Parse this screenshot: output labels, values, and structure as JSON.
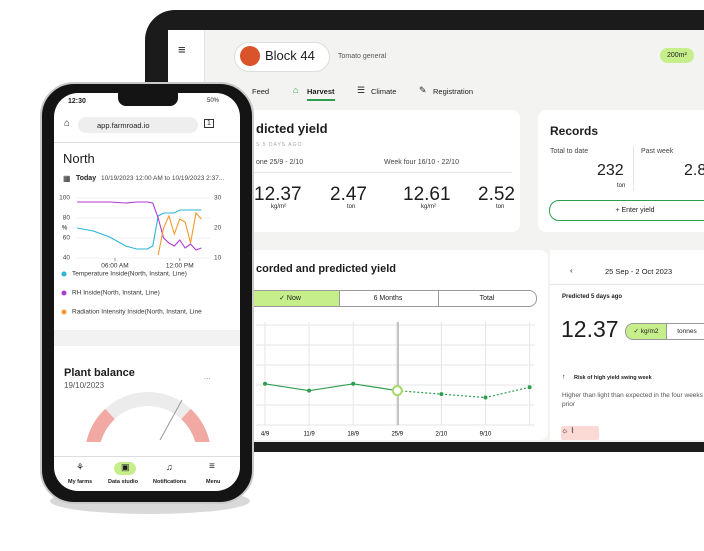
{
  "tablet": {
    "block": "Block 44",
    "crop": "Tomato general",
    "area": "200m²",
    "tabs": [
      "Feed",
      "Harvest",
      "Climate",
      "Registration"
    ],
    "yield_card": {
      "title": "dicted yield",
      "subtitle": "S 5 DAYS AGO",
      "week_one": "one 25/9 - 2/10",
      "week_four": "Week four 16/10 - 22/10",
      "figures": [
        {
          "value": "12.37",
          "unit": "kg/m²"
        },
        {
          "value": "2.47",
          "unit": "ton"
        },
        {
          "value": "12.61",
          "unit": "kg/m²"
        },
        {
          "value": "2.52",
          "unit": "ton"
        }
      ]
    },
    "records": {
      "title": "Records",
      "total_label": "Total to date",
      "week_label": "Past week",
      "total": "232",
      "total_unit": "ton",
      "week": "2.8",
      "button": "+ Enter yield"
    },
    "chart": {
      "type": "line",
      "title": "corded and predicted yield",
      "toggles": [
        "✓ Now",
        "6 Months",
        "Total"
      ],
      "categories": [
        "4/9",
        "11/9",
        "18/9",
        "25/9",
        "2/10",
        "9/10",
        null
      ],
      "values": [
        12.2,
        12.0,
        12.2,
        12.0,
        11.9,
        11.8,
        12.1
      ],
      "color": "#2e9e4e",
      "ylim": [
        11,
        14
      ]
    },
    "detail": {
      "period": "25 Sep - 2 Oct 2023",
      "predicted": "Predicted 5 days ago",
      "value": "12.37",
      "units": [
        "✓ kg/m2",
        "tonnes"
      ],
      "risk": "Risk of high yield swing week",
      "note": "Higher than light than expected in the four weeks prior"
    }
  },
  "phone": {
    "time": "12:30",
    "battery": "50%",
    "url": "app.farmroad.io",
    "location": "North",
    "today": "Today",
    "range": "10/19/2023 12:00 AM to 10/19/2023 2:37...",
    "chart_data": {
      "type": "line",
      "y_label": "%",
      "x": [
        2.5,
        4,
        5.5,
        7,
        8,
        9,
        9.5,
        10,
        10.5,
        11,
        11.5,
        12,
        12.5,
        13,
        13.5,
        14
      ],
      "xlim": [
        2.3,
        14.8
      ],
      "xticks": [
        {
          "value": 6,
          "label": "06:00 AM"
        },
        {
          "value": 12,
          "label": "12:00 PM"
        }
      ],
      "ylim": [
        40,
        100
      ],
      "yticks": [
        40,
        60,
        80,
        100
      ],
      "y2lim": [
        10,
        30
      ],
      "y2ticks": [
        10,
        20,
        30
      ],
      "series": [
        {
          "name": "Temperature Inside(North, Instant, Line)",
          "color": "#2bb5d3",
          "axis": "y2",
          "values": [
            20,
            19,
            17,
            14,
            13,
            13,
            14,
            24,
            25,
            25,
            25,
            26,
            26,
            26,
            26,
            26
          ]
        },
        {
          "name": "RH Inside(North, Instant, Line)",
          "color": "#b03ad4",
          "values": [
            96,
            96,
            96,
            95,
            96,
            96,
            95,
            80,
            60,
            55,
            52,
            58,
            50,
            54,
            48,
            50
          ]
        },
        {
          "name": "Radiation Intensity Inside(North, Instant, Line",
          "color": "#f29a2e",
          "axis": "y2",
          "values": [
            null,
            null,
            null,
            null,
            null,
            null,
            null,
            11,
            20,
            24,
            18,
            23,
            22,
            15,
            25,
            23
          ]
        }
      ]
    },
    "panel": {
      "title": "Plant balance",
      "date": "19/10/2023",
      "more": "..."
    },
    "nav": [
      "My farms",
      "Data studio",
      "Notifications",
      "Menu"
    ]
  }
}
